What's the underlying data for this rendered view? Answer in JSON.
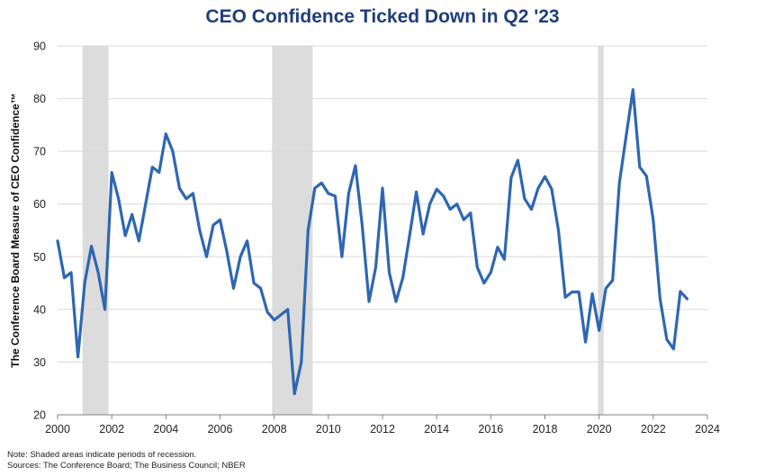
{
  "chart_data": {
    "type": "line",
    "title": "CEO Confidence Ticked Down in Q2 '23",
    "ylabel": "The Conference Board Measure of CEO Confidence™",
    "xlabel": "",
    "ylim": [
      20,
      90
    ],
    "xlim": [
      2000,
      2024
    ],
    "yticks": [
      "20",
      "30",
      "40",
      "50",
      "60",
      "70",
      "80",
      "90"
    ],
    "xticks": [
      "2000",
      "2002",
      "2004",
      "2006",
      "2008",
      "2010",
      "2012",
      "2014",
      "2016",
      "2018",
      "2020",
      "2022",
      "2024"
    ],
    "grid": true,
    "line_color": "#2e67b1",
    "shade_color": "#dcdcdc",
    "recessions": [
      [
        2000.92,
        2001.88
      ],
      [
        2007.92,
        2009.42
      ],
      [
        2019.96,
        2020.17
      ]
    ],
    "series": [
      {
        "x": [
          2000.0,
          2000.25,
          2000.5,
          2000.75,
          2001.0,
          2001.25,
          2001.5,
          2001.75,
          2002.0,
          2002.25,
          2002.5,
          2002.75,
          2003.0,
          2003.25,
          2003.5,
          2003.75,
          2004.0,
          2004.25,
          2004.5,
          2004.75,
          2005.0,
          2005.25,
          2005.5,
          2005.75,
          2006.0,
          2006.25,
          2006.5,
          2006.75,
          2007.0,
          2007.25,
          2007.5,
          2007.75,
          2008.0,
          2008.25,
          2008.5,
          2008.75,
          2009.0,
          2009.25,
          2009.5,
          2009.75,
          2010.0,
          2010.25,
          2010.5,
          2010.75,
          2011.0,
          2011.25,
          2011.5,
          2011.75,
          2012.0,
          2012.25,
          2012.5,
          2012.75,
          2013.0,
          2013.25,
          2013.5,
          2013.75,
          2014.0,
          2014.25,
          2014.5,
          2014.75,
          2015.0,
          2015.25,
          2015.5,
          2015.75,
          2016.0,
          2016.25,
          2016.5,
          2016.75,
          2017.0,
          2017.25,
          2017.5,
          2017.75,
          2018.0,
          2018.25,
          2018.5,
          2018.75,
          2019.0,
          2019.25,
          2019.5,
          2019.75,
          2020.0,
          2020.25,
          2020.5,
          2020.75,
          2021.0,
          2021.25,
          2021.5,
          2021.75,
          2022.0,
          2022.25,
          2022.5,
          2022.75,
          2023.0,
          2023.25
        ],
        "values": [
          53,
          46,
          47,
          31,
          45,
          52,
          47,
          40,
          66,
          61,
          54,
          58,
          53,
          60,
          67,
          66,
          73.3,
          70,
          63,
          61,
          62,
          55,
          50,
          56,
          57,
          51,
          44,
          50,
          53,
          45,
          44,
          39.5,
          38,
          39,
          40,
          24,
          30,
          55,
          63,
          64,
          62,
          61.5,
          50,
          62,
          67.3,
          56,
          41.5,
          48,
          63,
          47,
          41.5,
          46,
          54,
          62.3,
          54.3,
          60,
          62.8,
          61.5,
          59,
          60,
          57,
          58.3,
          48,
          45,
          47,
          51.8,
          49.5,
          65,
          68.3,
          61,
          59,
          63,
          65.2,
          62.8,
          55,
          42.3,
          43.3,
          43.3,
          33.8,
          43,
          36,
          44,
          45.5,
          64,
          73,
          81.7,
          67,
          65.3,
          57,
          42,
          34.3,
          32.5,
          43.4,
          42
        ]
      }
    ]
  },
  "footnotes": {
    "note": "Note: Shaded areas indicate periods of  recession.",
    "sources": "Sources: The  Conference Board; The Business Council; NBER"
  }
}
